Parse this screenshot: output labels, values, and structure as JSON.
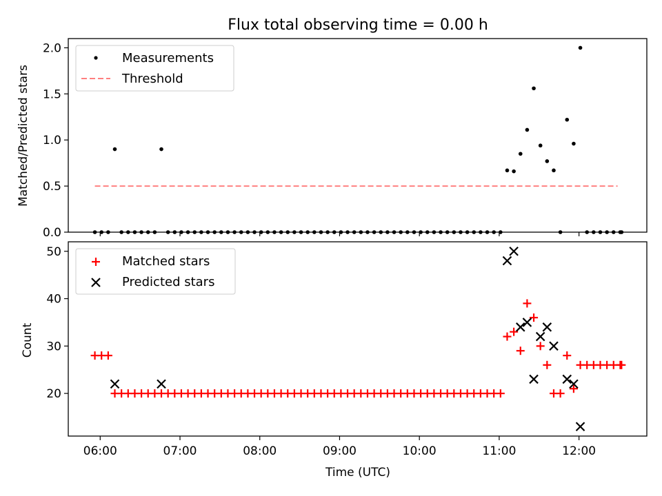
{
  "title": "Flux total observing time = 0.00 h",
  "colors": {
    "measurement": "#000000",
    "threshold": "#ff7f7f",
    "matched": "#ff0000",
    "predicted": "#000000"
  },
  "chart_data": [
    {
      "type": "scatter",
      "ylabel": "Matched/Predicted stars",
      "ylim": [
        0,
        2.1
      ],
      "yticks": [
        "0.0",
        "0.5",
        "1.0",
        "1.5",
        "2.0"
      ],
      "xlim": [
        "05:36",
        "12:51"
      ],
      "legend": {
        "placement": "upper-left",
        "entries": [
          "Measurements",
          "Threshold"
        ]
      },
      "threshold": {
        "name": "Threshold",
        "y": 0.5,
        "x": [
          "05:56",
          "12:29"
        ]
      },
      "series": [
        {
          "name": "Measurements",
          "marker": "dot",
          "points": [
            [
              "05:56",
              0
            ],
            [
              "06:01",
              0
            ],
            [
              "06:06",
              0
            ],
            [
              "06:11",
              0.9
            ],
            [
              "06:16",
              0
            ],
            [
              "06:21",
              0
            ],
            [
              "06:26",
              0
            ],
            [
              "06:31",
              0
            ],
            [
              "06:36",
              0
            ],
            [
              "06:41",
              0
            ],
            [
              "06:46",
              0.9
            ],
            [
              "06:51",
              0
            ],
            [
              "06:56",
              0
            ],
            [
              "07:01",
              0
            ],
            [
              "07:06",
              0
            ],
            [
              "07:11",
              0
            ],
            [
              "07:16",
              0
            ],
            [
              "07:21",
              0
            ],
            [
              "07:26",
              0
            ],
            [
              "07:31",
              0
            ],
            [
              "07:36",
              0
            ],
            [
              "07:41",
              0
            ],
            [
              "07:46",
              0
            ],
            [
              "07:51",
              0
            ],
            [
              "07:56",
              0
            ],
            [
              "08:01",
              0
            ],
            [
              "08:06",
              0
            ],
            [
              "08:11",
              0
            ],
            [
              "08:16",
              0
            ],
            [
              "08:21",
              0
            ],
            [
              "08:26",
              0
            ],
            [
              "08:31",
              0
            ],
            [
              "08:36",
              0
            ],
            [
              "08:41",
              0
            ],
            [
              "08:46",
              0
            ],
            [
              "08:51",
              0
            ],
            [
              "08:56",
              0
            ],
            [
              "09:01",
              0
            ],
            [
              "09:06",
              0
            ],
            [
              "09:11",
              0
            ],
            [
              "09:16",
              0
            ],
            [
              "09:21",
              0
            ],
            [
              "09:26",
              0
            ],
            [
              "09:31",
              0
            ],
            [
              "09:36",
              0
            ],
            [
              "09:41",
              0
            ],
            [
              "09:46",
              0
            ],
            [
              "09:51",
              0
            ],
            [
              "09:56",
              0
            ],
            [
              "10:01",
              0
            ],
            [
              "10:06",
              0
            ],
            [
              "10:11",
              0
            ],
            [
              "10:16",
              0
            ],
            [
              "10:21",
              0
            ],
            [
              "10:26",
              0
            ],
            [
              "10:31",
              0
            ],
            [
              "10:36",
              0
            ],
            [
              "10:41",
              0
            ],
            [
              "10:46",
              0
            ],
            [
              "10:51",
              0
            ],
            [
              "10:56",
              0
            ],
            [
              "11:01",
              0
            ],
            [
              "11:06",
              0.67
            ],
            [
              "11:11",
              0.66
            ],
            [
              "11:16",
              0.85
            ],
            [
              "11:21",
              1.11
            ],
            [
              "11:26",
              1.56
            ],
            [
              "11:31",
              0.94
            ],
            [
              "11:36",
              0.77
            ],
            [
              "11:41",
              0.67
            ],
            [
              "11:46",
              0
            ],
            [
              "11:51",
              1.22
            ],
            [
              "11:56",
              0.96
            ],
            [
              "12:01",
              2.0
            ],
            [
              "12:06",
              0
            ],
            [
              "12:11",
              0
            ],
            [
              "12:16",
              0
            ],
            [
              "12:21",
              0
            ],
            [
              "12:26",
              0
            ],
            [
              "12:31",
              0
            ],
            [
              "12:32",
              0
            ]
          ]
        }
      ]
    },
    {
      "type": "scatter",
      "xlabel": "Time (UTC)",
      "ylabel": "Count",
      "ylim": [
        11,
        52
      ],
      "yticks": [
        "20",
        "30",
        "40",
        "50"
      ],
      "xlim": [
        "05:36",
        "12:51"
      ],
      "xticks": [
        "06:00",
        "07:00",
        "08:00",
        "09:00",
        "10:00",
        "11:00",
        "12:00"
      ],
      "legend": {
        "placement": "upper-left",
        "entries": [
          "Matched stars",
          "Predicted stars"
        ]
      },
      "series": [
        {
          "name": "Matched stars",
          "marker": "plus",
          "points": [
            [
              "05:56",
              28
            ],
            [
              "06:01",
              28
            ],
            [
              "06:06",
              28
            ],
            [
              "06:11",
              20
            ],
            [
              "06:16",
              20
            ],
            [
              "06:21",
              20
            ],
            [
              "06:26",
              20
            ],
            [
              "06:31",
              20
            ],
            [
              "06:36",
              20
            ],
            [
              "06:41",
              20
            ],
            [
              "06:46",
              20
            ],
            [
              "06:51",
              20
            ],
            [
              "06:56",
              20
            ],
            [
              "07:01",
              20
            ],
            [
              "07:06",
              20
            ],
            [
              "07:11",
              20
            ],
            [
              "07:16",
              20
            ],
            [
              "07:21",
              20
            ],
            [
              "07:26",
              20
            ],
            [
              "07:31",
              20
            ],
            [
              "07:36",
              20
            ],
            [
              "07:41",
              20
            ],
            [
              "07:46",
              20
            ],
            [
              "07:51",
              20
            ],
            [
              "07:56",
              20
            ],
            [
              "08:01",
              20
            ],
            [
              "08:06",
              20
            ],
            [
              "08:11",
              20
            ],
            [
              "08:16",
              20
            ],
            [
              "08:21",
              20
            ],
            [
              "08:26",
              20
            ],
            [
              "08:31",
              20
            ],
            [
              "08:36",
              20
            ],
            [
              "08:41",
              20
            ],
            [
              "08:46",
              20
            ],
            [
              "08:51",
              20
            ],
            [
              "08:56",
              20
            ],
            [
              "09:01",
              20
            ],
            [
              "09:06",
              20
            ],
            [
              "09:11",
              20
            ],
            [
              "09:16",
              20
            ],
            [
              "09:21",
              20
            ],
            [
              "09:26",
              20
            ],
            [
              "09:31",
              20
            ],
            [
              "09:36",
              20
            ],
            [
              "09:41",
              20
            ],
            [
              "09:46",
              20
            ],
            [
              "09:51",
              20
            ],
            [
              "09:56",
              20
            ],
            [
              "10:01",
              20
            ],
            [
              "10:06",
              20
            ],
            [
              "10:11",
              20
            ],
            [
              "10:16",
              20
            ],
            [
              "10:21",
              20
            ],
            [
              "10:26",
              20
            ],
            [
              "10:31",
              20
            ],
            [
              "10:36",
              20
            ],
            [
              "10:41",
              20
            ],
            [
              "10:46",
              20
            ],
            [
              "10:51",
              20
            ],
            [
              "10:56",
              20
            ],
            [
              "11:01",
              20
            ],
            [
              "11:06",
              32
            ],
            [
              "11:11",
              33
            ],
            [
              "11:16",
              29
            ],
            [
              "11:21",
              39
            ],
            [
              "11:26",
              36
            ],
            [
              "11:31",
              30
            ],
            [
              "11:36",
              26
            ],
            [
              "11:41",
              20
            ],
            [
              "11:46",
              20
            ],
            [
              "11:51",
              28
            ],
            [
              "11:56",
              21
            ],
            [
              "12:01",
              26
            ],
            [
              "12:06",
              26
            ],
            [
              "12:11",
              26
            ],
            [
              "12:16",
              26
            ],
            [
              "12:21",
              26
            ],
            [
              "12:26",
              26
            ],
            [
              "12:31",
              26
            ],
            [
              "12:32",
              26
            ]
          ]
        },
        {
          "name": "Predicted stars",
          "marker": "x",
          "points": [
            [
              "06:11",
              22
            ],
            [
              "06:46",
              22
            ],
            [
              "11:06",
              48
            ],
            [
              "11:11",
              50
            ],
            [
              "11:16",
              34
            ],
            [
              "11:21",
              35
            ],
            [
              "11:26",
              23
            ],
            [
              "11:31",
              32
            ],
            [
              "11:36",
              34
            ],
            [
              "11:41",
              30
            ],
            [
              "11:51",
              23
            ],
            [
              "11:56",
              22
            ],
            [
              "12:01",
              13
            ]
          ]
        }
      ]
    }
  ]
}
